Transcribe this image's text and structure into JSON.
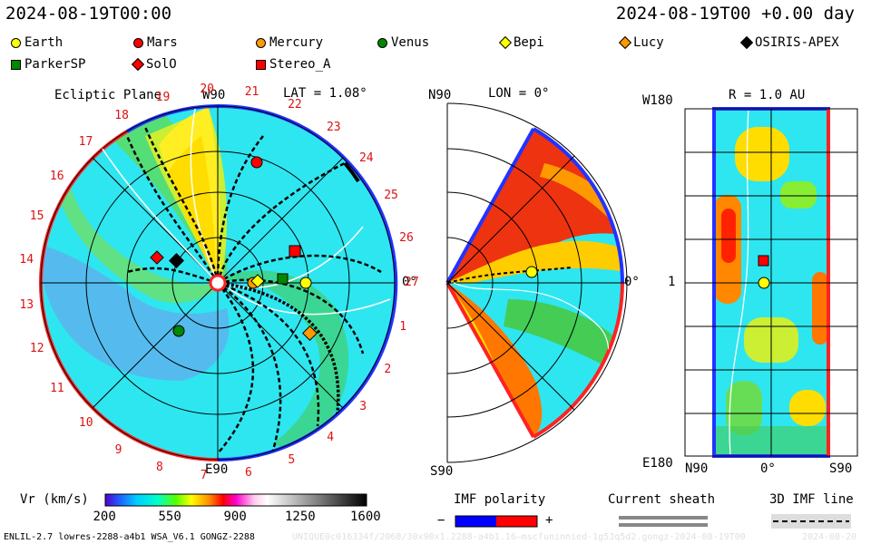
{
  "header": {
    "left_time": "2024-08-19T00:00",
    "right_time": "2024-08-19T00 +0.00 day"
  },
  "legend": [
    {
      "name": "Earth",
      "color": "#ffff00",
      "shape": "circle"
    },
    {
      "name": "Mars",
      "color": "#ff0000",
      "shape": "circle"
    },
    {
      "name": "Mercury",
      "color": "#ff9900",
      "shape": "circle"
    },
    {
      "name": "Venus",
      "color": "#008800",
      "shape": "circle"
    },
    {
      "name": "Bepi",
      "color": "#ffff00",
      "shape": "diamond"
    },
    {
      "name": "Lucy",
      "color": "#ff9900",
      "shape": "diamond"
    },
    {
      "name": "OSIRIS-APEX",
      "color": "#000000",
      "shape": "diamond"
    },
    {
      "name": "ParkerSP",
      "color": "#008800",
      "shape": "square"
    },
    {
      "name": "SolO",
      "color": "#ff0000",
      "shape": "diamond"
    },
    {
      "name": "Stereo_A",
      "color": "#ff0000",
      "shape": "square"
    }
  ],
  "panel1": {
    "title": "Ecliptic Plane",
    "lat": "LAT = 1.08°",
    "top_label": "W90",
    "bottom_label": "E90",
    "right_label": "0°",
    "carrington_ticks": [
      "1",
      "2",
      "3",
      "4",
      "5",
      "6",
      "7",
      "8",
      "9",
      "10",
      "11",
      "12",
      "13",
      "14",
      "15",
      "16",
      "17",
      "18",
      "19",
      "20",
      "21",
      "22",
      "23",
      "24",
      "25",
      "26",
      "27"
    ]
  },
  "panel2": {
    "top_left": "N90",
    "lon": "LON = 0°",
    "bottom_left": "S90",
    "right_label": "0°"
  },
  "panel3": {
    "title": "R = 1.0 AU",
    "top_left": "W180",
    "mid_left": "1",
    "bottom_left": "E180",
    "x_left": "N90",
    "x_mid": "0°",
    "x_right": "S90"
  },
  "colorbar": {
    "label": "Vr (km/s)",
    "ticks": [
      "200",
      "550",
      "900",
      "1250",
      "1600"
    ],
    "range": [
      200,
      1600
    ]
  },
  "imf_polarity": {
    "label": "IMF polarity",
    "minus": "−",
    "plus": "+",
    "neg_color": "#0000ff",
    "pos_color": "#ff0000"
  },
  "current_sheath": {
    "label": "Current sheath"
  },
  "imf_line": {
    "label": "3D IMF line"
  },
  "footer": {
    "left": "ENLIL-2.7 lowres-2288-a4b1 WSA_V6.1 GONGZ-2288",
    "watermark": "UNIQUE0c016334f/2068/30x90x1.2288-a4b1.16—mscfuninnied-1g53q5d2.gongz-2024-08-19T00",
    "right_partial": "2024-08-20"
  },
  "chart_data": [
    {
      "type": "heatmap",
      "title": "Ecliptic Plane",
      "subtitle": "LAT = 1.08°",
      "quantity": "Vr (km/s)",
      "zlim": [
        200,
        1600
      ]
    },
    {
      "type": "heatmap",
      "subtitle": "LON = 0°",
      "quantity": "Vr (km/s)",
      "zlim": [
        200,
        1600
      ]
    },
    {
      "type": "heatmap",
      "title": "R = 1.0 AU",
      "quantity": "Vr (km/s)",
      "zlim": [
        200,
        1600
      ]
    }
  ]
}
